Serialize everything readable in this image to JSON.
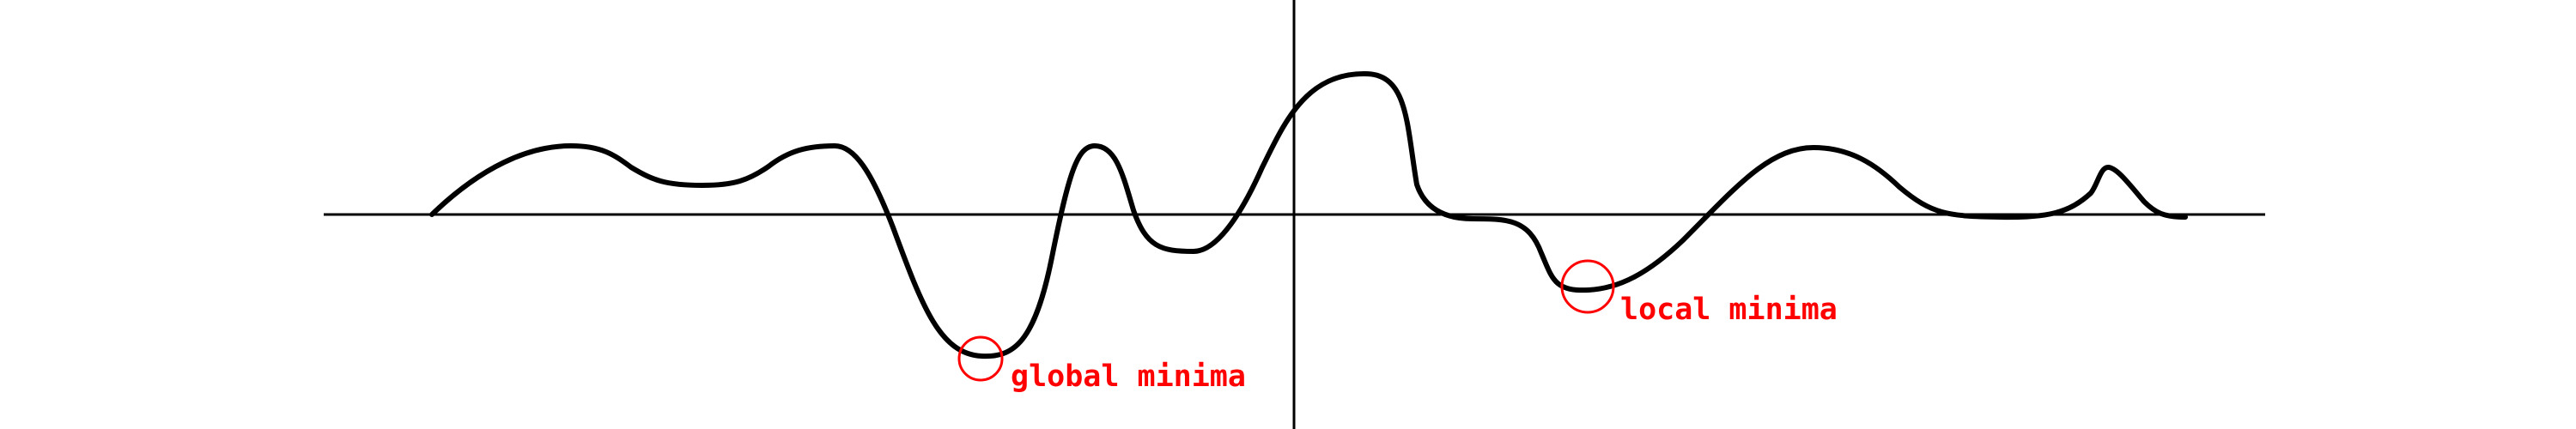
{
  "diagram": {
    "curve_color": "#000000",
    "axis_color": "#000000",
    "annotation_color": "#ff0000",
    "annotations": {
      "global": {
        "label": "global minima"
      },
      "local": {
        "label": "local minima"
      }
    }
  }
}
